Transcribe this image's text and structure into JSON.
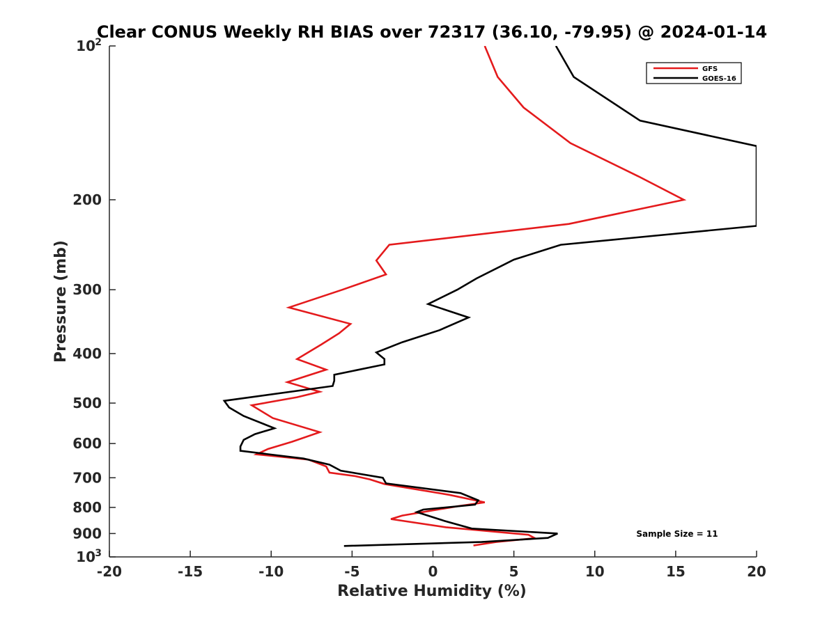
{
  "chart_data": {
    "type": "line",
    "title": "Clear CONUS Weekly RH BIAS over 72317 (36.10, -79.95) @ 2024-01-14",
    "xlabel": "Relative Humidity (%)",
    "ylabel": "Pressure (mb)",
    "xlim": [
      -20,
      20
    ],
    "ylim": [
      100,
      1000
    ],
    "y_scale": "log",
    "y_reversed": true,
    "grid": false,
    "legend_position": "top-right",
    "x_ticks": [
      "-20",
      "-15",
      "-10",
      "-5",
      "0",
      "5",
      "10",
      "15",
      "20"
    ],
    "y_ticks": [
      {
        "value": 100,
        "base": "10",
        "exp": "2"
      },
      {
        "value": 200,
        "label": "200"
      },
      {
        "value": 300,
        "label": "300"
      },
      {
        "value": 400,
        "label": "400"
      },
      {
        "value": 500,
        "label": "500"
      },
      {
        "value": 600,
        "label": "600"
      },
      {
        "value": 700,
        "label": "700"
      },
      {
        "value": 800,
        "label": "800"
      },
      {
        "value": 900,
        "label": "900"
      },
      {
        "value": 1000,
        "base": "10",
        "exp": "3"
      }
    ],
    "annotation": "Sample Size = 11",
    "series": [
      {
        "name": "GFS",
        "color": "#e41a1c",
        "points": [
          [
            3.2,
            100
          ],
          [
            4.0,
            115
          ],
          [
            5.6,
            132
          ],
          [
            8.5,
            155
          ],
          [
            12.7,
            180
          ],
          [
            15.5,
            200
          ],
          [
            8.4,
            223
          ],
          [
            -2.7,
            245
          ],
          [
            -3.5,
            263
          ],
          [
            -2.9,
            280
          ],
          [
            -5.6,
            300
          ],
          [
            -8.9,
            325
          ],
          [
            -5.1,
            350
          ],
          [
            -5.8,
            365
          ],
          [
            -6.9,
            384
          ],
          [
            -8.4,
            410
          ],
          [
            -6.6,
            430
          ],
          [
            -9.0,
            455
          ],
          [
            -7.0,
            475
          ],
          [
            -8.4,
            487
          ],
          [
            -11.2,
            505
          ],
          [
            -9.9,
            535
          ],
          [
            -7.0,
            570
          ],
          [
            -8.7,
            595
          ],
          [
            -10.2,
            615
          ],
          [
            -10.9,
            630
          ],
          [
            -7.7,
            645
          ],
          [
            -6.6,
            665
          ],
          [
            -6.4,
            684
          ],
          [
            -4.8,
            695
          ],
          [
            -3.9,
            705
          ],
          [
            -3.0,
            720
          ],
          [
            1.0,
            756
          ],
          [
            3.2,
            782
          ],
          [
            1.5,
            796
          ],
          [
            -1.9,
            830
          ],
          [
            -2.6,
            843
          ],
          [
            0.8,
            875
          ],
          [
            5.9,
            905
          ],
          [
            6.3,
            919
          ],
          [
            3.9,
            935
          ],
          [
            2.5,
            950
          ]
        ]
      },
      {
        "name": "GOES-16",
        "color": "#000000",
        "points": [
          [
            7.6,
            100
          ],
          [
            8.7,
            115
          ],
          [
            12.8,
            140
          ],
          [
            20.0,
            157
          ],
          [
            20.0,
            225
          ],
          [
            7.9,
            245
          ],
          [
            5.0,
            262
          ],
          [
            2.7,
            285
          ],
          [
            1.5,
            300
          ],
          [
            -0.3,
            320
          ],
          [
            2.2,
            340
          ],
          [
            0.4,
            360
          ],
          [
            -1.9,
            380
          ],
          [
            -3.5,
            398
          ],
          [
            -3.0,
            410
          ],
          [
            -3.0,
            420
          ],
          [
            -6.1,
            440
          ],
          [
            -6.1,
            452
          ],
          [
            -6.2,
            463
          ],
          [
            -12.9,
            495
          ],
          [
            -12.6,
            510
          ],
          [
            -11.7,
            530
          ],
          [
            -9.8,
            560
          ],
          [
            -11.0,
            575
          ],
          [
            -11.7,
            590
          ],
          [
            -11.9,
            608
          ],
          [
            -11.9,
            620
          ],
          [
            -8.0,
            642
          ],
          [
            -6.4,
            660
          ],
          [
            -5.7,
            678
          ],
          [
            -3.1,
            700
          ],
          [
            -2.9,
            718
          ],
          [
            1.7,
            750
          ],
          [
            2.8,
            775
          ],
          [
            2.6,
            790
          ],
          [
            -0.6,
            808
          ],
          [
            -1.0,
            817
          ],
          [
            0.7,
            850
          ],
          [
            2.4,
            880
          ],
          [
            7.7,
            900
          ],
          [
            7.1,
            918
          ],
          [
            3.0,
            935
          ],
          [
            -5.5,
            952
          ]
        ]
      }
    ]
  }
}
